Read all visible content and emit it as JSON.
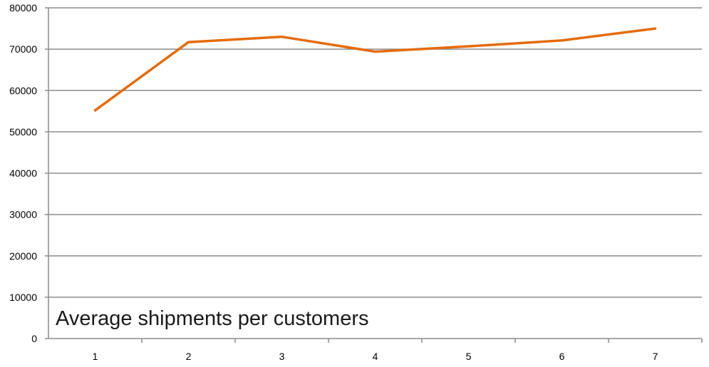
{
  "chart_data": {
    "type": "line",
    "title": "Average shipments per customers",
    "xlabel": "",
    "ylabel": "",
    "categories": [
      "1",
      "2",
      "3",
      "4",
      "5",
      "6",
      "7"
    ],
    "series": [
      {
        "values": [
          55200,
          71700,
          73000,
          69400,
          70700,
          72100,
          75000
        ],
        "color": "#e46c0a"
      }
    ],
    "ylim": [
      0,
      80000
    ],
    "yticks": [
      "0",
      "10000",
      "20000",
      "30000",
      "40000",
      "50000",
      "60000",
      "70000",
      "80000"
    ],
    "grid": true,
    "legend": "none",
    "gridline_color": "#8c8c8c",
    "axis_color": "#8c8c8c"
  }
}
